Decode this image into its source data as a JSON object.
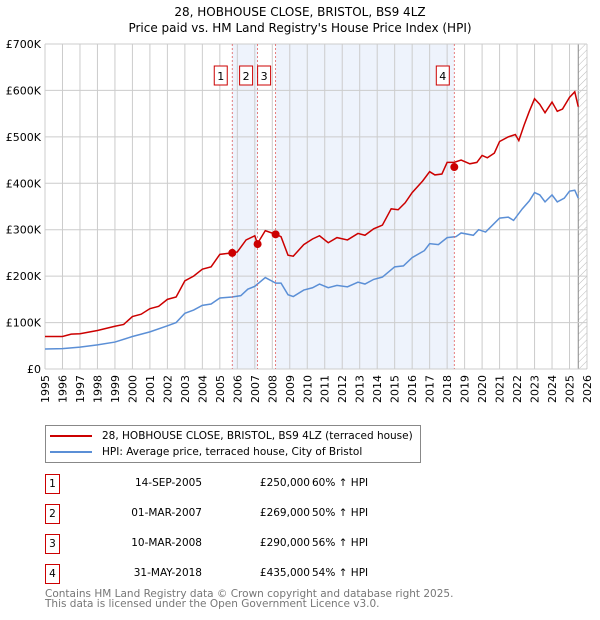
{
  "chart_data": {
    "type": "line",
    "title": "28, HOBHOUSE CLOSE, BRISTOL, BS9 4LZ",
    "subtitle": "Price paid vs. HM Land Registry's House Price Index (HPI)",
    "xlim": [
      1995,
      2026
    ],
    "ylim": [
      0,
      700000
    ],
    "x_ticks": [
      "1995",
      "1996",
      "1997",
      "1998",
      "1999",
      "2000",
      "2001",
      "2002",
      "2003",
      "2004",
      "2005",
      "2006",
      "2007",
      "2008",
      "2009",
      "2010",
      "2011",
      "2012",
      "2013",
      "2014",
      "2015",
      "2016",
      "2017",
      "2018",
      "2019",
      "2020",
      "2021",
      "2022",
      "2023",
      "2024",
      "2025",
      "2026"
    ],
    "y_ticks": [
      {
        "v": 0,
        "label": "£0"
      },
      {
        "v": 100000,
        "label": "£100K"
      },
      {
        "v": 200000,
        "label": "£200K"
      },
      {
        "v": 300000,
        "label": "£300K"
      },
      {
        "v": 400000,
        "label": "£400K"
      },
      {
        "v": 500000,
        "label": "£500K"
      },
      {
        "v": 600000,
        "label": "£600K"
      },
      {
        "v": 700000,
        "label": "£700K"
      }
    ],
    "grid": true,
    "series": [
      {
        "name": "28, HOBHOUSE CLOSE, BRISTOL, BS9 4LZ (terraced house)",
        "color": "#cc0000",
        "points": [
          [
            1995,
            70
          ],
          [
            1996,
            70
          ],
          [
            1996.5,
            75
          ],
          [
            1997,
            76
          ],
          [
            1998,
            83
          ],
          [
            1999,
            92
          ],
          [
            1999.5,
            96
          ],
          [
            2000,
            113
          ],
          [
            2000.5,
            118
          ],
          [
            2001,
            130
          ],
          [
            2001.5,
            135
          ],
          [
            2002,
            150
          ],
          [
            2002.5,
            155
          ],
          [
            2003,
            190
          ],
          [
            2003.5,
            200
          ],
          [
            2004,
            215
          ],
          [
            2004.5,
            220
          ],
          [
            2005,
            247
          ],
          [
            2005.7,
            250
          ],
          [
            2006,
            252
          ],
          [
            2006.5,
            278
          ],
          [
            2007,
            287
          ],
          [
            2007.15,
            270
          ],
          [
            2007.6,
            298
          ],
          [
            2008.2,
            290
          ],
          [
            2008.5,
            285
          ],
          [
            2008.9,
            245
          ],
          [
            2009.2,
            243
          ],
          [
            2009.8,
            268
          ],
          [
            2010.3,
            280
          ],
          [
            2010.7,
            287
          ],
          [
            2011.2,
            272
          ],
          [
            2011.7,
            283
          ],
          [
            2012.3,
            278
          ],
          [
            2012.9,
            292
          ],
          [
            2013.3,
            288
          ],
          [
            2013.8,
            302
          ],
          [
            2014.3,
            310
          ],
          [
            2014.8,
            345
          ],
          [
            2015.2,
            343
          ],
          [
            2015.6,
            358
          ],
          [
            2016,
            380
          ],
          [
            2016.6,
            405
          ],
          [
            2017,
            425
          ],
          [
            2017.3,
            418
          ],
          [
            2017.7,
            420
          ],
          [
            2018,
            445
          ],
          [
            2018.4,
            445
          ],
          [
            2018.8,
            450
          ],
          [
            2019.3,
            442
          ],
          [
            2019.7,
            445
          ],
          [
            2020,
            460
          ],
          [
            2020.3,
            455
          ],
          [
            2020.7,
            465
          ],
          [
            2021,
            490
          ],
          [
            2021.5,
            500
          ],
          [
            2021.9,
            505
          ],
          [
            2022.1,
            492
          ],
          [
            2022.4,
            525
          ],
          [
            2022.7,
            555
          ],
          [
            2023,
            582
          ],
          [
            2023.3,
            570
          ],
          [
            2023.6,
            552
          ],
          [
            2024,
            575
          ],
          [
            2024.3,
            555
          ],
          [
            2024.6,
            560
          ],
          [
            2025,
            585
          ],
          [
            2025.3,
            597
          ],
          [
            2025.5,
            565
          ]
        ]
      },
      {
        "name": "HPI: Average price, terraced house, City of Bristol",
        "color": "#5b8fd6",
        "points": [
          [
            1995,
            43
          ],
          [
            1996,
            44
          ],
          [
            1997,
            47
          ],
          [
            1998,
            52
          ],
          [
            1999,
            58
          ],
          [
            2000,
            70
          ],
          [
            2001,
            80
          ],
          [
            2002,
            93
          ],
          [
            2002.5,
            100
          ],
          [
            2003,
            120
          ],
          [
            2003.5,
            127
          ],
          [
            2004,
            137
          ],
          [
            2004.5,
            140
          ],
          [
            2005,
            153
          ],
          [
            2005.7,
            155
          ],
          [
            2006.2,
            158
          ],
          [
            2006.6,
            172
          ],
          [
            2007,
            178
          ],
          [
            2007.6,
            197
          ],
          [
            2008.2,
            185
          ],
          [
            2008.5,
            185
          ],
          [
            2008.9,
            160
          ],
          [
            2009.2,
            156
          ],
          [
            2009.8,
            170
          ],
          [
            2010.3,
            175
          ],
          [
            2010.7,
            183
          ],
          [
            2011.2,
            175
          ],
          [
            2011.7,
            180
          ],
          [
            2012.3,
            177
          ],
          [
            2012.9,
            187
          ],
          [
            2013.3,
            183
          ],
          [
            2013.8,
            193
          ],
          [
            2014.3,
            198
          ],
          [
            2015,
            220
          ],
          [
            2015.5,
            222
          ],
          [
            2016,
            240
          ],
          [
            2016.7,
            255
          ],
          [
            2017,
            270
          ],
          [
            2017.5,
            268
          ],
          [
            2018,
            283
          ],
          [
            2018.5,
            285
          ],
          [
            2018.8,
            293
          ],
          [
            2019.5,
            288
          ],
          [
            2019.8,
            300
          ],
          [
            2020.2,
            295
          ],
          [
            2020.6,
            310
          ],
          [
            2021,
            325
          ],
          [
            2021.5,
            327
          ],
          [
            2021.8,
            320
          ],
          [
            2022.3,
            345
          ],
          [
            2022.7,
            362
          ],
          [
            2023,
            380
          ],
          [
            2023.3,
            375
          ],
          [
            2023.6,
            360
          ],
          [
            2024,
            375
          ],
          [
            2024.3,
            360
          ],
          [
            2024.7,
            368
          ],
          [
            2025,
            383
          ],
          [
            2025.3,
            385
          ],
          [
            2025.5,
            368
          ]
        ]
      }
    ],
    "y_units": "thousands GBP",
    "sales": [
      {
        "n": "1",
        "x": 2005.71,
        "y": 250
      },
      {
        "n": "2",
        "x": 2007.16,
        "y": 269
      },
      {
        "n": "3",
        "x": 2008.19,
        "y": 290
      },
      {
        "n": "4",
        "x": 2018.41,
        "y": 435
      }
    ],
    "shaded_ranges": [
      [
        2005.71,
        2007.16
      ],
      [
        2008.19,
        2018.41
      ]
    ],
    "hatched_from": 2025.5
  },
  "legend": {
    "property": "28, HOBHOUSE CLOSE, BRISTOL, BS9 4LZ (terraced house)",
    "hpi": "HPI: Average price, terraced house, City of Bristol"
  },
  "sales": [
    {
      "n": "1",
      "date": "14-SEP-2005",
      "price": "£250,000",
      "hpi": "60% ↑ HPI"
    },
    {
      "n": "2",
      "date": "01-MAR-2007",
      "price": "£269,000",
      "hpi": "50% ↑ HPI"
    },
    {
      "n": "3",
      "date": "10-MAR-2008",
      "price": "£290,000",
      "hpi": "56% ↑ HPI"
    },
    {
      "n": "4",
      "date": "31-MAY-2018",
      "price": "£435,000",
      "hpi": "54% ↑ HPI"
    }
  ],
  "footer": {
    "line1": "Contains HM Land Registry data © Crown copyright and database right 2025.",
    "line2": "This data is licensed under the Open Government Licence v3.0."
  }
}
